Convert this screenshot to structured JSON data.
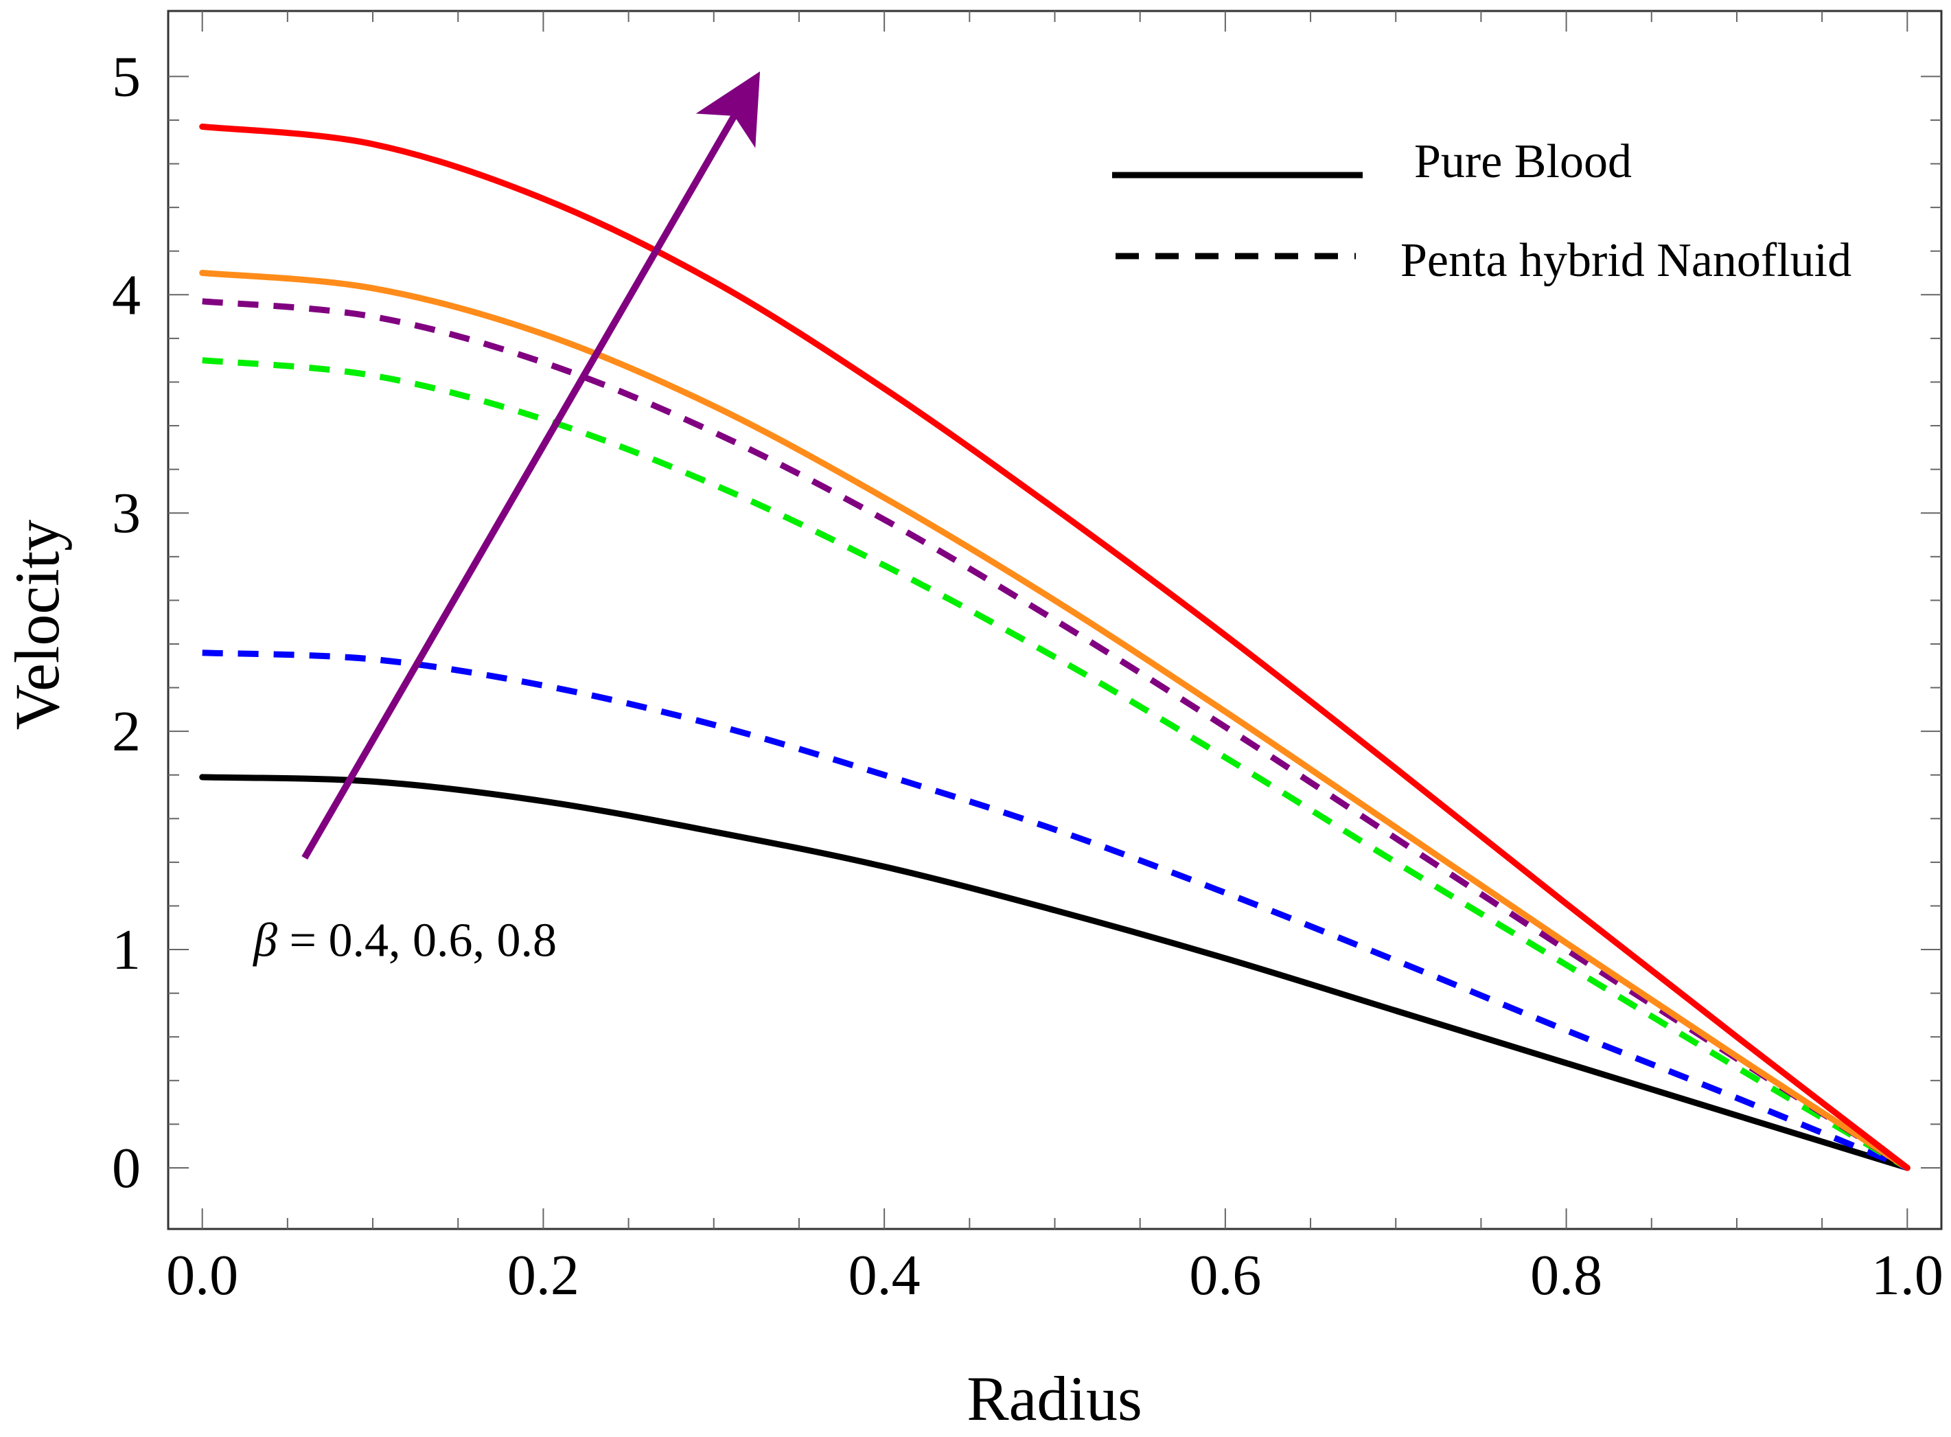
{
  "chart_data": {
    "type": "line",
    "title": "",
    "xlabel": "Radius",
    "ylabel": "Velocity",
    "xlim": [
      -0.02,
      1.02
    ],
    "ylim": [
      -0.28,
      5.3
    ],
    "xticks": [
      0.0,
      0.2,
      0.4,
      0.6,
      0.8,
      1.0
    ],
    "xtick_labels": [
      "0.0",
      "0.2",
      "0.4",
      "0.6",
      "0.8",
      "1.0"
    ],
    "yticks": [
      0,
      1,
      2,
      3,
      4,
      5
    ],
    "ytick_labels": [
      "0",
      "1",
      "2",
      "3",
      "4",
      "5"
    ],
    "x_minor_step": 0.05,
    "y_minor_step": 0.2,
    "grid": false,
    "legend_position": "top-right",
    "legend": [
      {
        "label": "Pure Blood",
        "style": "solid",
        "color": "#000000"
      },
      {
        "label": "Penta hybrid Nanofluid",
        "style": "dashed",
        "color": "#000000"
      }
    ],
    "series": [
      {
        "name": "Pure Blood (black)",
        "color": "#000000",
        "style": "solid",
        "x": [
          0.0,
          0.1,
          0.2,
          0.3,
          0.4,
          0.5,
          0.6,
          0.7,
          0.8,
          0.9,
          1.0
        ],
        "y": [
          1.79,
          1.77,
          1.68,
          1.54,
          1.38,
          1.18,
          0.96,
          0.72,
          0.48,
          0.24,
          0.0
        ]
      },
      {
        "name": "Penta hybrid Nanofluid (blue)",
        "color": "#0000ff",
        "style": "dashed",
        "x": [
          0.0,
          0.1,
          0.2,
          0.3,
          0.4,
          0.5,
          0.6,
          0.7,
          0.8,
          0.9,
          1.0
        ],
        "y": [
          2.36,
          2.33,
          2.21,
          2.03,
          1.8,
          1.55,
          1.26,
          0.95,
          0.63,
          0.32,
          0.0
        ]
      },
      {
        "name": "Penta hybrid Nanofluid (green)",
        "color": "#00ee00",
        "style": "dashed",
        "x": [
          0.0,
          0.1,
          0.2,
          0.3,
          0.4,
          0.5,
          0.6,
          0.7,
          0.8,
          0.9,
          1.0
        ],
        "y": [
          3.7,
          3.63,
          3.43,
          3.13,
          2.76,
          2.34,
          1.88,
          1.4,
          0.93,
          0.46,
          0.0
        ]
      },
      {
        "name": "Penta hybrid Nanofluid (purple)",
        "color": "#800080",
        "style": "dashed",
        "x": [
          0.0,
          0.1,
          0.2,
          0.3,
          0.4,
          0.5,
          0.6,
          0.7,
          0.8,
          0.9,
          1.0
        ],
        "y": [
          3.97,
          3.9,
          3.69,
          3.37,
          2.97,
          2.51,
          2.02,
          1.51,
          1.0,
          0.5,
          0.0
        ]
      },
      {
        "name": "Pure Blood (orange)",
        "color": "#ff8c1a",
        "style": "solid",
        "x": [
          0.0,
          0.1,
          0.2,
          0.3,
          0.4,
          0.5,
          0.6,
          0.7,
          0.8,
          0.9,
          1.0
        ],
        "y": [
          4.1,
          4.03,
          3.82,
          3.49,
          3.07,
          2.6,
          2.09,
          1.56,
          1.03,
          0.51,
          0.0
        ]
      },
      {
        "name": "Pure Blood (red)",
        "color": "#ff0000",
        "style": "solid",
        "x": [
          0.0,
          0.1,
          0.2,
          0.3,
          0.4,
          0.5,
          0.6,
          0.7,
          0.8,
          0.9,
          1.0
        ],
        "y": [
          4.77,
          4.69,
          4.44,
          4.06,
          3.57,
          3.02,
          2.44,
          1.83,
          1.21,
          0.6,
          0.0
        ]
      }
    ],
    "annotations": [
      {
        "type": "arrow",
        "color": "#800080",
        "from": [
          0.06,
          1.42
        ],
        "to": [
          0.315,
          4.86
        ]
      },
      {
        "type": "text",
        "symbol": "β",
        "text": " = 0.4, 0.6, 0.8",
        "at": [
          0.03,
          0.97
        ]
      }
    ]
  }
}
